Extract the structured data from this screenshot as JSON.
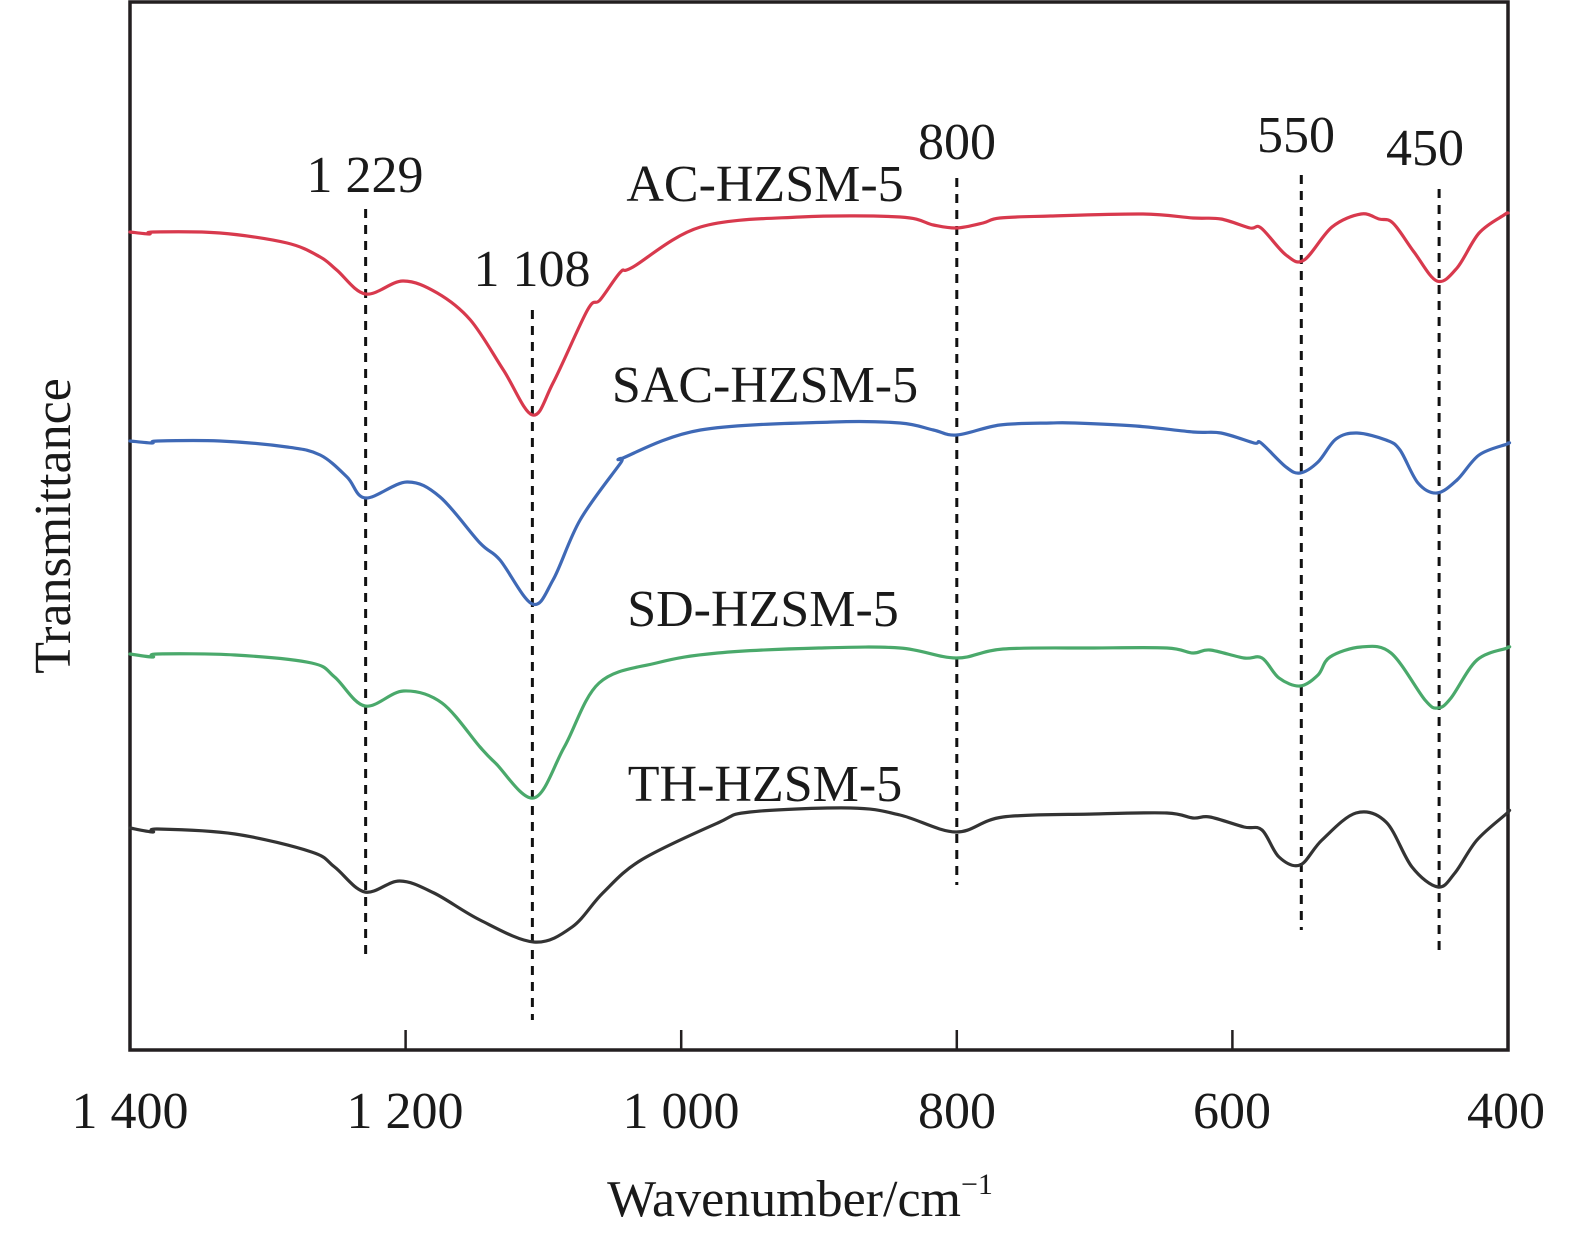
{
  "chart_data": {
    "type": "line",
    "title": "",
    "xlabel": "Wavenumber/cm",
    "xlabel_superscript": "−1",
    "ylabel": "Transmittance",
    "xlim": [
      1400,
      400
    ],
    "x_reversed": true,
    "ylim": [
      0,
      104.8
    ],
    "y_units": "a.u. (offset, no y ticks)",
    "grid": false,
    "x_ticks": [
      {
        "value": 1400,
        "label": "1 400"
      },
      {
        "value": 1200,
        "label": "1 200"
      },
      {
        "value": 1000,
        "label": "1 000"
      },
      {
        "value": 800,
        "label": "800"
      },
      {
        "value": 600,
        "label": "600"
      },
      {
        "value": 400,
        "label": "400"
      }
    ],
    "reference_lines": [
      {
        "x": 1229,
        "label": "1 229",
        "y_from": 9.5,
        "y_to": 84.1
      },
      {
        "x": 1108,
        "label": "1 108",
        "y_from": 3.0,
        "y_to": 74.0
      },
      {
        "x": 800,
        "label": "800",
        "y_from": 16.5,
        "y_to": 87.2
      },
      {
        "x": 550,
        "label": "550",
        "y_from": 12.0,
        "y_to": 87.5
      },
      {
        "x": 450,
        "label": "450",
        "y_from": 9.5,
        "y_to": 86.1
      }
    ],
    "series": [
      {
        "name": "AC-HZSM-5",
        "color": "#d8394d",
        "points": [
          [
            1400,
            81.8
          ],
          [
            1386,
            81.6
          ],
          [
            1383,
            81.8
          ],
          [
            1334.7,
            81.7
          ],
          [
            1286,
            80.7
          ],
          [
            1262,
            79.3
          ],
          [
            1250,
            78.0
          ],
          [
            1229,
            75.6
          ],
          [
            1202,
            76.9
          ],
          [
            1177,
            75.7
          ],
          [
            1153,
            73.0
          ],
          [
            1129,
            68.0
          ],
          [
            1108,
            63.5
          ],
          [
            1093,
            66.7
          ],
          [
            1068,
            74.0
          ],
          [
            1058.9,
            75.0
          ],
          [
            1044,
            77.8
          ],
          [
            1035,
            78.3
          ],
          [
            986,
            82.3
          ],
          [
            913.8,
            83.3
          ],
          [
            841,
            83.3
          ],
          [
            817,
            82.5
          ],
          [
            800,
            82.2
          ],
          [
            781,
            82.7
          ],
          [
            768.7,
            83.2
          ],
          [
            732,
            83.4
          ],
          [
            664.9,
            83.6
          ],
          [
            628.6,
            83.2
          ],
          [
            608.3,
            83.1
          ],
          [
            587.2,
            82.2
          ],
          [
            579.2,
            82.2
          ],
          [
            561.1,
            79.5
          ],
          [
            548,
            79.0
          ],
          [
            527.7,
            82.3
          ],
          [
            506.7,
            83.6
          ],
          [
            493.6,
            83.1
          ],
          [
            483.5,
            82.7
          ],
          [
            468.2,
            79.8
          ],
          [
            451.5,
            76.9
          ],
          [
            437,
            78.2
          ],
          [
            421,
            81.7
          ],
          [
            402.9,
            83.5
          ],
          [
            400,
            83.7
          ]
        ]
      },
      {
        "name": "SAC-HZSM-5",
        "color": "#3f69b6",
        "points": [
          [
            1400,
            60.9
          ],
          [
            1384,
            60.7
          ],
          [
            1380,
            60.9
          ],
          [
            1334.7,
            60.9
          ],
          [
            1286,
            60.3
          ],
          [
            1262,
            59.5
          ],
          [
            1242.5,
            57.3
          ],
          [
            1229,
            55.2
          ],
          [
            1199,
            56.8
          ],
          [
            1175,
            55.3
          ],
          [
            1146,
            50.7
          ],
          [
            1131.5,
            49.0
          ],
          [
            1108,
            44.6
          ],
          [
            1093,
            47.0
          ],
          [
            1073.4,
            53.0
          ],
          [
            1044,
            58.7
          ],
          [
            1042.2,
            59.2
          ],
          [
            986,
            62.0
          ],
          [
            889.8,
            62.8
          ],
          [
            841,
            62.7
          ],
          [
            817,
            62.0
          ],
          [
            800,
            61.5
          ],
          [
            768.7,
            62.5
          ],
          [
            732,
            62.7
          ],
          [
            714.2,
            62.7
          ],
          [
            670,
            62.4
          ],
          [
            628.6,
            61.8
          ],
          [
            608.3,
            61.7
          ],
          [
            584.3,
            60.7
          ],
          [
            579.2,
            60.7
          ],
          [
            561.1,
            58.3
          ],
          [
            550.9,
            57.7
          ],
          [
            537.9,
            58.8
          ],
          [
            524.8,
            61.1
          ],
          [
            509.6,
            61.7
          ],
          [
            488.5,
            61.0
          ],
          [
            478.4,
            60.0
          ],
          [
            465.3,
            56.7
          ],
          [
            451.5,
            55.7
          ],
          [
            437,
            57.0
          ],
          [
            421,
            59.5
          ],
          [
            400.6,
            60.6
          ],
          [
            400,
            60.7
          ]
        ]
      },
      {
        "name": "SD-HZSM-5",
        "color": "#4aa96b",
        "points": [
          [
            1400,
            39.6
          ],
          [
            1383.6,
            39.3
          ],
          [
            1380,
            39.6
          ],
          [
            1323.8,
            39.5
          ],
          [
            1268.2,
            38.7
          ],
          [
            1251.5,
            37.3
          ],
          [
            1229.5,
            34.4
          ],
          [
            1201.5,
            35.9
          ],
          [
            1173.6,
            34.7
          ],
          [
            1146,
            30.3
          ],
          [
            1134.8,
            28.7
          ],
          [
            1107,
            25.2
          ],
          [
            1084.8,
            30.3
          ],
          [
            1059.6,
            36.7
          ],
          [
            1018,
            38.7
          ],
          [
            973.5,
            39.7
          ],
          [
            900,
            40.2
          ],
          [
            841.2,
            40.2
          ],
          [
            800.6,
            39.2
          ],
          [
            766.5,
            40.1
          ],
          [
            700.4,
            40.2
          ],
          [
            647.5,
            40.2
          ],
          [
            628.6,
            39.7
          ],
          [
            616.3,
            40.0
          ],
          [
            591.6,
            39.2
          ],
          [
            578.5,
            39.2
          ],
          [
            566.2,
            37.2
          ],
          [
            550.9,
            36.4
          ],
          [
            537.9,
            37.5
          ],
          [
            529.2,
            39.3
          ],
          [
            506.7,
            40.3
          ],
          [
            484.9,
            39.7
          ],
          [
            460.2,
            35.0
          ],
          [
            450.8,
            34.2
          ],
          [
            441.4,
            35.2
          ],
          [
            422.5,
            39.0
          ],
          [
            400.6,
            40.2
          ],
          [
            400,
            40.3
          ]
        ]
      },
      {
        "name": "TH-HZSM-5",
        "color": "#333333",
        "points": [
          [
            1400,
            22.2
          ],
          [
            1383.6,
            21.8
          ],
          [
            1380,
            22.1
          ],
          [
            1323.8,
            21.6
          ],
          [
            1268.2,
            19.8
          ],
          [
            1251.5,
            18.3
          ],
          [
            1229.5,
            15.8
          ],
          [
            1204.3,
            16.9
          ],
          [
            1179.4,
            15.7
          ],
          [
            1146,
            13.0
          ],
          [
            1107,
            10.8
          ],
          [
            1079.2,
            12.3
          ],
          [
            1056.9,
            15.7
          ],
          [
            1029,
            19.0
          ],
          [
            973.5,
            22.7
          ],
          [
            950,
            23.8
          ],
          [
            877,
            24.2
          ],
          [
            841.2,
            23.5
          ],
          [
            800.6,
            21.8
          ],
          [
            766.5,
            23.3
          ],
          [
            700.4,
            23.6
          ],
          [
            647.5,
            23.7
          ],
          [
            628.6,
            23.2
          ],
          [
            616.3,
            23.3
          ],
          [
            591.6,
            22.3
          ],
          [
            578.5,
            22.0
          ],
          [
            566.2,
            19.3
          ],
          [
            550.9,
            18.5
          ],
          [
            535,
            21.0
          ],
          [
            510.3,
            23.7
          ],
          [
            488.5,
            22.8
          ],
          [
            469.7,
            18.3
          ],
          [
            450.8,
            16.3
          ],
          [
            438.5,
            17.7
          ],
          [
            422.5,
            21.0
          ],
          [
            400.6,
            23.7
          ],
          [
            400,
            23.9
          ]
        ]
      }
    ]
  }
}
